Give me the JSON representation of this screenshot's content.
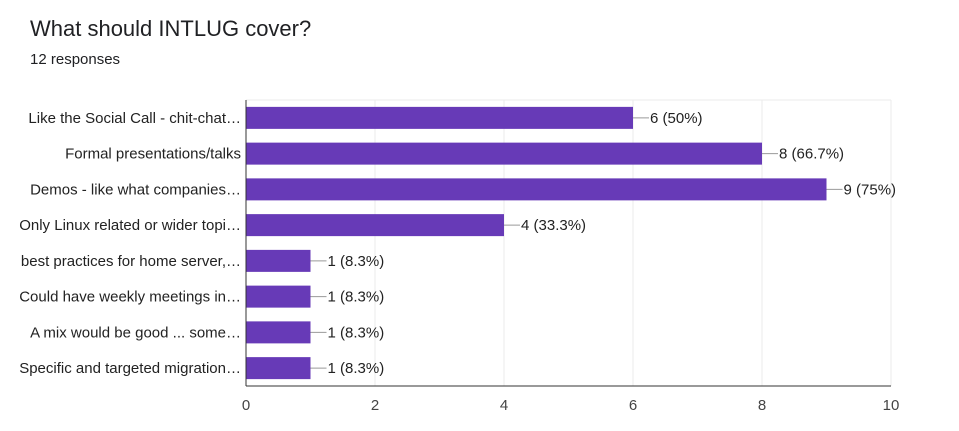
{
  "header": {
    "title": "What should INTLUG cover?",
    "responses": "12 responses"
  },
  "colors": {
    "bar": "#673ab7",
    "grid": "#ebebeb",
    "axis": "#333333",
    "leader": "#999999"
  },
  "chart_data": {
    "type": "bar",
    "orientation": "horizontal",
    "title": "What should INTLUG cover?",
    "subtitle": "12 responses",
    "categories": [
      "Like the Social Call - chit-chat…",
      "Formal presentations/talks",
      "Demos - like what companies…",
      "Only Linux related or wider topi…",
      "best practices for home server,…",
      "Could have weekly meetings in…",
      "A mix would be good ... some…",
      "Specific and targeted migration…"
    ],
    "values": [
      6,
      8,
      9,
      4,
      1,
      1,
      1,
      1
    ],
    "labels": [
      "6 (50%)",
      "8 (66.7%)",
      "9 (75%)",
      "4 (33.3%)",
      "1 (8.3%)",
      "1 (8.3%)",
      "1 (8.3%)",
      "1 (8.3%)"
    ],
    "xlim": [
      0,
      10
    ],
    "xticks": [
      0,
      2,
      4,
      6,
      8,
      10
    ],
    "grid": true,
    "legend": "none"
  }
}
